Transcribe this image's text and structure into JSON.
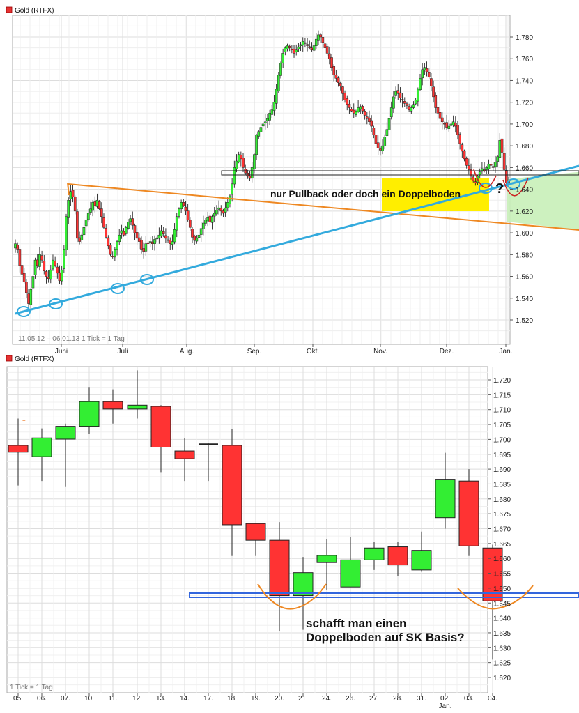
{
  "colors": {
    "up": "#33ee33",
    "down": "#ff3333",
    "grid": "#dddddd",
    "trend_blue": "#33aadd",
    "trend_orange": "#ee8822",
    "zone_green": "#c8f0b8",
    "zone_yellow": "#ffee00",
    "support_blue": "#3366dd"
  },
  "chart_data": [
    {
      "type": "candlestick",
      "title": "Gold (RTFX)",
      "range_note": "11.05.12 – 06.01.13   1 Tick = 1 Tag",
      "x_ticks": [
        "Juni",
        "Juli",
        "Aug.",
        "Sep.",
        "Okt.",
        "Nov.",
        "Dez.",
        "Jan."
      ],
      "y_ticks": [
        "1.520",
        "1.540",
        "1.560",
        "1.580",
        "1.600",
        "1.620",
        "1.640",
        "1.660",
        "1.680",
        "1.700",
        "1.720",
        "1.740",
        "1.760",
        "1.780"
      ],
      "ylim": [
        1515,
        1790
      ],
      "grid": true,
      "closes_approx": [
        1590,
        1585,
        1570,
        1562,
        1555,
        1545,
        1535,
        1548,
        1560,
        1575,
        1570,
        1580,
        1575,
        1565,
        1560,
        1558,
        1566,
        1575,
        1570,
        1563,
        1556,
        1566,
        1585,
        1615,
        1630,
        1638,
        1633,
        1620,
        1595,
        1592,
        1598,
        1605,
        1612,
        1618,
        1622,
        1628,
        1625,
        1630,
        1622,
        1615,
        1605,
        1596,
        1588,
        1580,
        1578,
        1585,
        1592,
        1598,
        1602,
        1598,
        1605,
        1610,
        1613,
        1607,
        1600,
        1595,
        1592,
        1585,
        1583,
        1590,
        1590,
        1592,
        1590,
        1594,
        1595,
        1598,
        1602,
        1599,
        1595,
        1593,
        1590,
        1592,
        1603,
        1615,
        1622,
        1628,
        1625,
        1620,
        1612,
        1605,
        1596,
        1593,
        1595,
        1598,
        1604,
        1609,
        1612,
        1614,
        1610,
        1615,
        1618,
        1621,
        1623,
        1620,
        1618,
        1623,
        1628,
        1634,
        1645,
        1660,
        1666,
        1672,
        1668,
        1660,
        1655,
        1652,
        1650,
        1660,
        1672,
        1690,
        1693,
        1697,
        1700,
        1702,
        1705,
        1710,
        1713,
        1720,
        1732,
        1745,
        1756,
        1765,
        1770,
        1772,
        1770,
        1768,
        1765,
        1768,
        1771,
        1773,
        1776,
        1774,
        1772,
        1770,
        1768,
        1772,
        1778,
        1782,
        1780,
        1775,
        1770,
        1765,
        1760,
        1752,
        1745,
        1742,
        1738,
        1735,
        1728,
        1722,
        1718,
        1715,
        1712,
        1710,
        1712,
        1715,
        1716,
        1712,
        1708,
        1705,
        1702,
        1698,
        1690,
        1682,
        1678,
        1676,
        1680,
        1688,
        1695,
        1705,
        1715,
        1725,
        1730,
        1728,
        1724,
        1722,
        1719,
        1717,
        1713,
        1715,
        1718,
        1722,
        1732,
        1742,
        1750,
        1752,
        1748,
        1743,
        1735,
        1725,
        1715,
        1710,
        1705,
        1702,
        1700,
        1697,
        1698,
        1700,
        1702,
        1698,
        1690,
        1682,
        1675,
        1668,
        1662,
        1658,
        1652,
        1648,
        1646,
        1652,
        1656,
        1659,
        1657,
        1660,
        1663,
        1662,
        1660,
        1665,
        1670,
        1685,
        1674,
        1658,
        1646,
        1647
      ],
      "annotations": [
        "nur Pullback oder doch ein Doppelboden",
        "?"
      ]
    },
    {
      "type": "candlestick",
      "title": "Gold (RTFX)",
      "range_note": "1 Tick = 1 Tag",
      "x_ticks": [
        "05.",
        "06.",
        "07.",
        "10.",
        "11.",
        "12.",
        "13.",
        "14.",
        "17.",
        "18.",
        "19.",
        "20.",
        "21.",
        "24.",
        "26.",
        "27.",
        "28.",
        "31.",
        "02.",
        "03.",
        "04."
      ],
      "x_subtick": "Jan.",
      "y_ticks": [
        "1.620",
        "1.625",
        "1.630",
        "1.635",
        "1.640",
        "1.645",
        "1.650",
        "1.655",
        "1.660",
        "1.665",
        "1.670",
        "1.675",
        "1.680",
        "1.685",
        "1.690",
        "1.695",
        "1.700",
        "1.705",
        "1.710",
        "1.715",
        "1.720"
      ],
      "ylim": [
        1617.5,
        1723.5
      ],
      "grid": true,
      "ohlc": [
        {
          "date": "05.",
          "open": 1698.0,
          "high": 1707.0,
          "low": 1684.5,
          "close": 1695.7
        },
        {
          "date": "06.",
          "open": 1694.2,
          "high": 1703.7,
          "low": 1686.0,
          "close": 1700.5
        },
        {
          "date": "07.",
          "open": 1700.1,
          "high": 1705.3,
          "low": 1684.0,
          "close": 1704.4
        },
        {
          "date": "10.",
          "open": 1704.4,
          "high": 1717.6,
          "low": 1701.9,
          "close": 1712.7
        },
        {
          "date": "11.",
          "open": 1712.7,
          "high": 1716.8,
          "low": 1705.3,
          "close": 1710.2
        },
        {
          "date": "12.",
          "open": 1710.2,
          "high": 1723.2,
          "low": 1707.0,
          "close": 1711.5
        },
        {
          "date": "13.",
          "open": 1711.1,
          "high": 1711.5,
          "low": 1689.0,
          "close": 1697.4
        },
        {
          "date": "14.",
          "open": 1696.1,
          "high": 1700.5,
          "low": 1686.0,
          "close": 1693.5
        },
        {
          "date": "17.",
          "open": 1698.4,
          "high": 1698.7,
          "low": 1686.0,
          "close": 1698.4
        },
        {
          "date": "18.",
          "open": 1698.0,
          "high": 1703.4,
          "low": 1660.8,
          "close": 1671.3
        },
        {
          "date": "19.",
          "open": 1671.7,
          "high": 1671.7,
          "low": 1660.8,
          "close": 1666.1
        },
        {
          "date": "20.",
          "open": 1666.1,
          "high": 1672.2,
          "low": 1635.5,
          "close": 1647.5
        },
        {
          "date": "21.",
          "open": 1647.5,
          "high": 1660.5,
          "low": 1636.0,
          "close": 1655.2
        },
        {
          "date": "24.",
          "open": 1658.6,
          "high": 1666.5,
          "low": 1649.5,
          "close": 1661.0
        },
        {
          "date": "26.",
          "open": 1650.4,
          "high": 1667.3,
          "low": 1650.4,
          "close": 1659.5
        },
        {
          "date": "27.",
          "open": 1659.5,
          "high": 1665.5,
          "low": 1656.1,
          "close": 1663.5
        },
        {
          "date": "28.",
          "open": 1663.9,
          "high": 1665.6,
          "low": 1654.0,
          "close": 1657.8
        },
        {
          "date": "31.",
          "open": 1656.1,
          "high": 1669.0,
          "low": 1655.7,
          "close": 1662.7
        },
        {
          "date": "02.",
          "open": 1673.7,
          "high": 1695.5,
          "low": 1670.0,
          "close": 1686.6
        },
        {
          "date": "03.",
          "open": 1686.0,
          "high": 1690.0,
          "low": 1660.8,
          "close": 1664.2
        },
        {
          "date": "04.",
          "open": 1663.5,
          "high": 1664.6,
          "low": 1626.0,
          "close": 1645.7
        }
      ],
      "annotations": [
        "schafft man einen",
        "Doppelboden auf SK Basis?"
      ]
    }
  ]
}
